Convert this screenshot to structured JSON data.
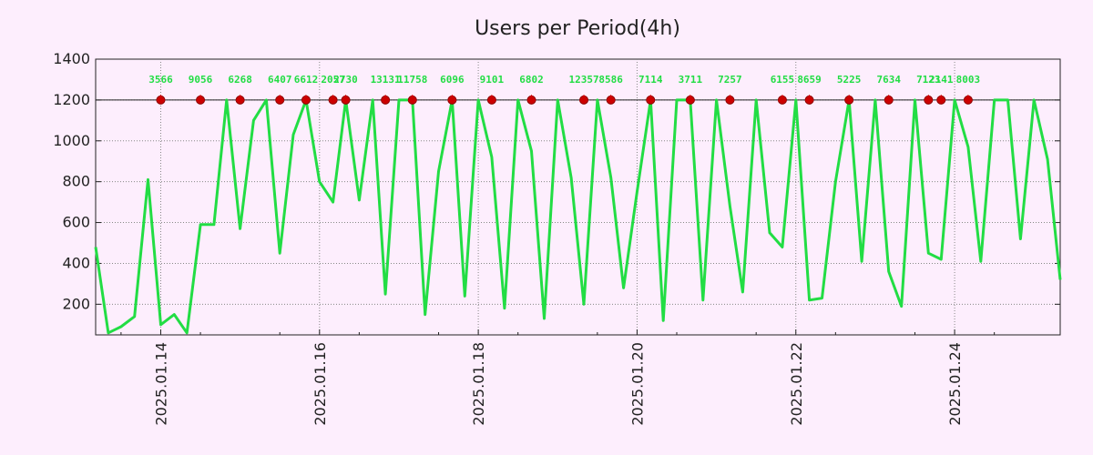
{
  "chart_data": {
    "type": "line",
    "title": "Users per Period(4h)",
    "xlabel": "",
    "ylabel": "",
    "ylim": [
      50,
      1400
    ],
    "yticks": [
      200,
      400,
      600,
      800,
      1000,
      1200,
      1400
    ],
    "xlim_days": [
      -0.82,
      11.33
    ],
    "xticks": [
      {
        "day": 0,
        "label": "2025.01.14"
      },
      {
        "day": 2,
        "label": "2025.01.16"
      },
      {
        "day": 4,
        "label": "2025.01.18"
      },
      {
        "day": 6,
        "label": "2025.01.20"
      },
      {
        "day": 8,
        "label": "2025.01.22"
      },
      {
        "day": 10,
        "label": "2025.01.24"
      }
    ],
    "cap_value": 1200,
    "grid": true,
    "series": [
      {
        "name": "Users",
        "color": "#22dd44",
        "x_days": [
          -0.82,
          -0.66,
          -0.5,
          -0.33,
          -0.16,
          0.0,
          0.17,
          0.33,
          0.5,
          0.67,
          0.83,
          1.0,
          1.17,
          1.33,
          1.5,
          1.67,
          1.83,
          2.0,
          2.17,
          2.33,
          2.5,
          2.67,
          2.83,
          3.0,
          3.17,
          3.33,
          3.5,
          3.67,
          3.83,
          4.0,
          4.17,
          4.33,
          4.5,
          4.67,
          4.83,
          5.0,
          5.17,
          5.33,
          5.5,
          5.67,
          5.83,
          6.0,
          6.17,
          6.33,
          6.5,
          6.67,
          6.83,
          7.0,
          7.17,
          7.33,
          7.5,
          7.67,
          7.83,
          8.0,
          8.17,
          8.33,
          8.5,
          8.67,
          8.83,
          9.0,
          9.17,
          9.33,
          9.5,
          9.67,
          9.83,
          10.0,
          10.17,
          10.33,
          10.5,
          10.67,
          10.83,
          11.0,
          11.17,
          11.33
        ],
        "values": [
          480,
          60,
          90,
          140,
          810,
          100,
          150,
          60,
          590,
          590,
          1200,
          570,
          1100,
          1200,
          450,
          1030,
          1200,
          800,
          700,
          1200,
          710,
          1200,
          250,
          1200,
          1200,
          150,
          850,
          1200,
          240,
          1200,
          920,
          180,
          1200,
          950,
          130,
          1200,
          820,
          200,
          1200,
          820,
          280,
          750,
          1200,
          120,
          1200,
          1200,
          220,
          1200,
          680,
          260,
          1200,
          550,
          480,
          1200,
          220,
          230,
          800,
          1200,
          410,
          1200,
          360,
          190,
          1200,
          450,
          420,
          1200,
          970,
          410,
          1200,
          1200,
          520,
          1200,
          910,
          320
        ]
      }
    ],
    "peaks": [
      {
        "day": 0.0,
        "label": "3566"
      },
      {
        "day": 0.5,
        "label": "9056"
      },
      {
        "day": 1.0,
        "label": "6268"
      },
      {
        "day": 1.5,
        "label": "6407"
      },
      {
        "day": 1.83,
        "label": "6612"
      },
      {
        "day": 2.17,
        "label": "2057"
      },
      {
        "day": 2.33,
        "label": "2730"
      },
      {
        "day": 2.83,
        "label": "13131"
      },
      {
        "day": 3.17,
        "label": "11758"
      },
      {
        "day": 3.67,
        "label": "6096"
      },
      {
        "day": 4.17,
        "label": "9101"
      },
      {
        "day": 4.67,
        "label": "6802"
      },
      {
        "day": 5.33,
        "label": "12357"
      },
      {
        "day": 5.67,
        "label": "8586"
      },
      {
        "day": 6.17,
        "label": "7114"
      },
      {
        "day": 6.67,
        "label": "3711"
      },
      {
        "day": 7.17,
        "label": "7257"
      },
      {
        "day": 7.83,
        "label": "6155"
      },
      {
        "day": 8.17,
        "label": "8659"
      },
      {
        "day": 8.67,
        "label": "5225"
      },
      {
        "day": 9.17,
        "label": "7634"
      },
      {
        "day": 9.67,
        "label": "7123"
      },
      {
        "day": 9.83,
        "label": "2141"
      },
      {
        "day": 10.17,
        "label": "8003"
      }
    ]
  }
}
